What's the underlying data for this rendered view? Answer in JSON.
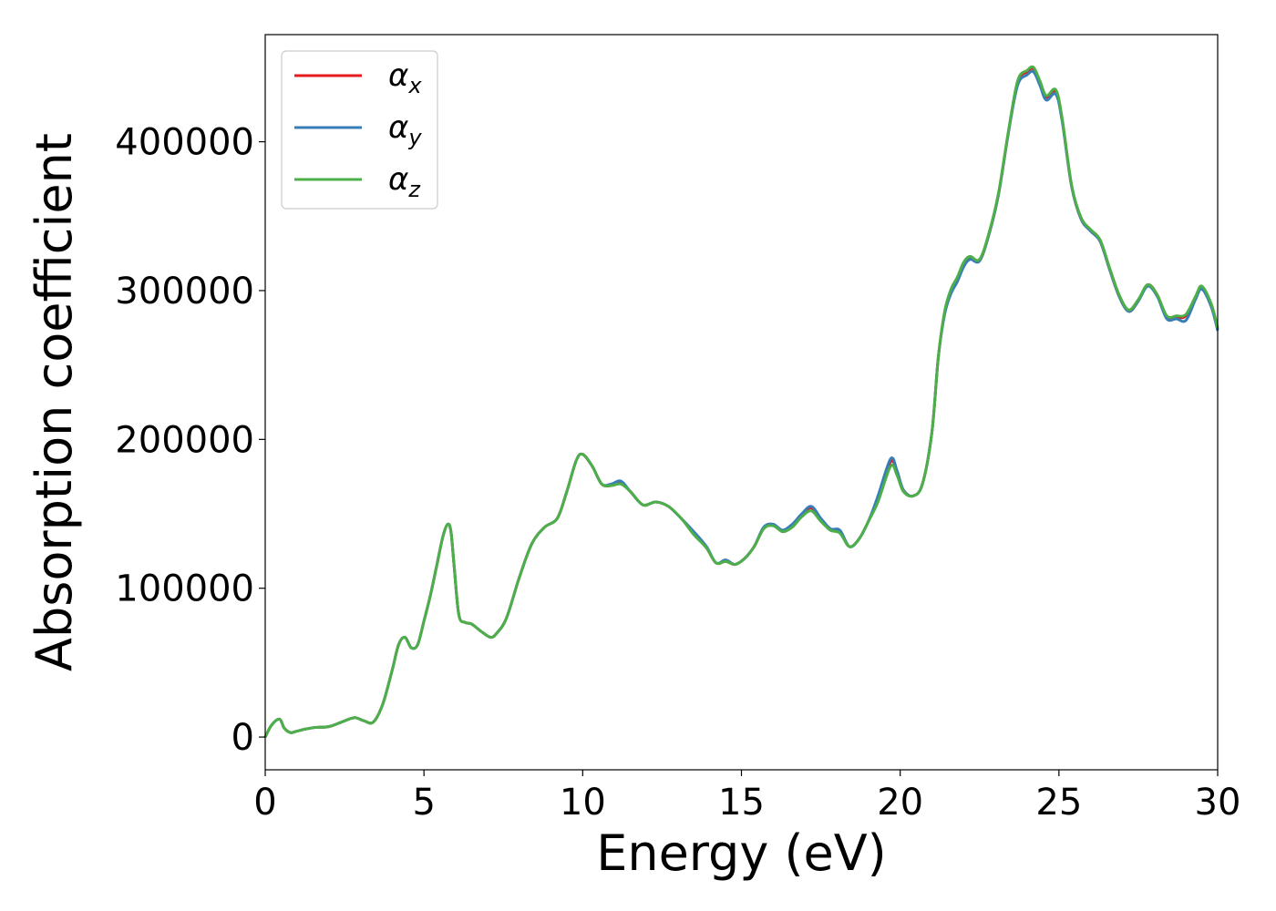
{
  "chart_data": {
    "type": "line",
    "xlabel": "Energy (eV)",
    "ylabel": "Absorption coefficient",
    "xlim": [
      0,
      30
    ],
    "ylim": [
      -22000,
      472000
    ],
    "xticks": [
      0,
      5,
      10,
      15,
      20,
      25,
      30
    ],
    "xtick_labels": [
      "0",
      "5",
      "10",
      "15",
      "20",
      "25",
      "30"
    ],
    "yticks": [
      0,
      100000,
      200000,
      300000,
      400000
    ],
    "ytick_labels": [
      "0",
      "100000",
      "200000",
      "300000",
      "400000"
    ],
    "grid": false,
    "legend_position": "top-left",
    "legend": [
      {
        "symbol": "α",
        "subscript": "x",
        "color": "#e41a1c"
      },
      {
        "symbol": "α",
        "subscript": "y",
        "color": "#377eb8"
      },
      {
        "symbol": "α",
        "subscript": "z",
        "color": "#4daf4a"
      }
    ],
    "series": [
      {
        "name": "αx",
        "color": "#e41a1c",
        "x": [
          0,
          0.2,
          0.45,
          0.6,
          0.8,
          1.0,
          1.3,
          1.6,
          2.0,
          2.4,
          2.8,
          3.1,
          3.4,
          3.7,
          4.0,
          4.2,
          4.4,
          4.6,
          4.8,
          5.0,
          5.2,
          5.4,
          5.6,
          5.75,
          5.85,
          5.95,
          6.1,
          6.3,
          6.5,
          6.8,
          7.1,
          7.3,
          7.6,
          8.0,
          8.4,
          8.8,
          9.2,
          9.5,
          9.8,
          10.0,
          10.3,
          10.6,
          10.9,
          11.2,
          11.5,
          11.9,
          12.3,
          12.7,
          13.1,
          13.5,
          13.9,
          14.2,
          14.5,
          14.8,
          15.1,
          15.4,
          15.7,
          16.0,
          16.3,
          16.6,
          16.9,
          17.2,
          17.5,
          17.8,
          18.1,
          18.4,
          18.7,
          19.0,
          19.3,
          19.7,
          19.9,
          20.1,
          20.4,
          20.7,
          21.0,
          21.2,
          21.4,
          21.6,
          21.8,
          22.0,
          22.2,
          22.5,
          22.8,
          23.1,
          23.4,
          23.7,
          24.0,
          24.2,
          24.4,
          24.6,
          24.9,
          25.1,
          25.4,
          25.7,
          26.0,
          26.3,
          26.6,
          26.9,
          27.2,
          27.5,
          27.8,
          28.1,
          28.4,
          28.7,
          29.0,
          29.3,
          29.5,
          29.8,
          30.0
        ],
        "y": [
          0,
          8000,
          12000,
          6000,
          3000,
          4000,
          5500,
          6500,
          7000,
          10000,
          13000,
          11000,
          10000,
          22000,
          45000,
          62000,
          67000,
          60000,
          62000,
          78000,
          95000,
          115000,
          135000,
          143000,
          138000,
          115000,
          82000,
          77000,
          76000,
          71000,
          67000,
          70000,
          80000,
          107000,
          130000,
          141000,
          147000,
          165000,
          186000,
          190000,
          182000,
          170000,
          169000,
          171000,
          165000,
          156000,
          158000,
          155000,
          147000,
          137000,
          127000,
          117000,
          118000,
          116000,
          120000,
          128000,
          140000,
          143000,
          138000,
          142000,
          149000,
          154000,
          146000,
          139000,
          138000,
          128000,
          133000,
          145000,
          160000,
          185000,
          178000,
          166000,
          162000,
          170000,
          205000,
          255000,
          285000,
          300000,
          308000,
          318000,
          322000,
          320000,
          338000,
          365000,
          405000,
          440000,
          447000,
          449000,
          440000,
          430000,
          434000,
          415000,
          370000,
          348000,
          340000,
          333000,
          314000,
          296000,
          286000,
          293000,
          304000,
          297000,
          282000,
          282000,
          283000,
          295000,
          302000,
          290000,
          274000
        ]
      },
      {
        "name": "αy",
        "color": "#377eb8",
        "x": [
          0,
          0.2,
          0.45,
          0.6,
          0.8,
          1.0,
          1.3,
          1.6,
          2.0,
          2.4,
          2.8,
          3.1,
          3.4,
          3.7,
          4.0,
          4.2,
          4.4,
          4.6,
          4.8,
          5.0,
          5.2,
          5.4,
          5.6,
          5.75,
          5.85,
          5.95,
          6.1,
          6.3,
          6.5,
          6.8,
          7.1,
          7.3,
          7.6,
          8.0,
          8.4,
          8.8,
          9.2,
          9.5,
          9.8,
          10.0,
          10.3,
          10.6,
          10.9,
          11.2,
          11.5,
          11.9,
          12.3,
          12.7,
          13.1,
          13.5,
          13.9,
          14.2,
          14.5,
          14.8,
          15.1,
          15.4,
          15.7,
          16.0,
          16.3,
          16.6,
          16.9,
          17.2,
          17.5,
          17.8,
          18.1,
          18.4,
          18.7,
          19.0,
          19.3,
          19.7,
          19.9,
          20.1,
          20.4,
          20.7,
          21.0,
          21.2,
          21.4,
          21.6,
          21.8,
          22.0,
          22.2,
          22.5,
          22.8,
          23.1,
          23.4,
          23.7,
          24.0,
          24.2,
          24.4,
          24.6,
          24.9,
          25.1,
          25.4,
          25.7,
          26.0,
          26.3,
          26.6,
          26.9,
          27.2,
          27.5,
          27.8,
          28.1,
          28.4,
          28.7,
          29.0,
          29.3,
          29.5,
          29.8,
          30.0
        ],
        "y": [
          0,
          8000,
          12000,
          6000,
          3000,
          4000,
          5500,
          6500,
          7000,
          10000,
          13000,
          11000,
          10000,
          22000,
          45000,
          62000,
          67000,
          60000,
          62000,
          78000,
          95000,
          115000,
          135000,
          143000,
          138000,
          115000,
          82000,
          77000,
          76000,
          71000,
          67000,
          70000,
          80000,
          107000,
          130000,
          141000,
          147000,
          165000,
          186000,
          190000,
          182000,
          170000,
          170000,
          172000,
          165000,
          156000,
          158000,
          155000,
          147000,
          138000,
          128000,
          117000,
          119000,
          116000,
          120000,
          128000,
          141000,
          143000,
          139000,
          143000,
          150000,
          155000,
          147000,
          140000,
          139000,
          128000,
          133000,
          145000,
          162000,
          187000,
          179000,
          166000,
          162000,
          170000,
          205000,
          255000,
          284000,
          298000,
          306000,
          316000,
          321000,
          320000,
          338000,
          365000,
          405000,
          438000,
          445000,
          447000,
          438000,
          428000,
          432000,
          414000,
          370000,
          348000,
          340000,
          333000,
          314000,
          296000,
          286000,
          293000,
          303000,
          296000,
          281000,
          281000,
          280000,
          294000,
          301000,
          289000,
          273000
        ]
      },
      {
        "name": "αz",
        "color": "#4daf4a",
        "x": [
          0,
          0.2,
          0.45,
          0.6,
          0.8,
          1.0,
          1.3,
          1.6,
          2.0,
          2.4,
          2.8,
          3.1,
          3.4,
          3.7,
          4.0,
          4.2,
          4.4,
          4.6,
          4.8,
          5.0,
          5.2,
          5.4,
          5.6,
          5.75,
          5.85,
          5.95,
          6.1,
          6.3,
          6.5,
          6.8,
          7.1,
          7.3,
          7.6,
          8.0,
          8.4,
          8.8,
          9.2,
          9.5,
          9.8,
          10.0,
          10.3,
          10.6,
          10.9,
          11.2,
          11.5,
          11.9,
          12.3,
          12.7,
          13.1,
          13.5,
          13.9,
          14.2,
          14.5,
          14.8,
          15.1,
          15.4,
          15.7,
          16.0,
          16.3,
          16.6,
          16.9,
          17.2,
          17.5,
          17.8,
          18.1,
          18.4,
          18.7,
          19.0,
          19.3,
          19.7,
          19.9,
          20.1,
          20.4,
          20.7,
          21.0,
          21.2,
          21.4,
          21.6,
          21.8,
          22.0,
          22.2,
          22.5,
          22.8,
          23.1,
          23.4,
          23.7,
          24.0,
          24.2,
          24.4,
          24.6,
          24.9,
          25.1,
          25.4,
          25.7,
          26.0,
          26.3,
          26.6,
          26.9,
          27.2,
          27.5,
          27.8,
          28.1,
          28.4,
          28.7,
          29.0,
          29.3,
          29.5,
          29.8,
          30.0
        ],
        "y": [
          0,
          8000,
          12000,
          6000,
          3000,
          4000,
          5500,
          6500,
          7000,
          10000,
          13000,
          11000,
          10000,
          22000,
          45000,
          62000,
          67000,
          60000,
          62000,
          78000,
          95000,
          115000,
          135000,
          143000,
          138000,
          115000,
          82000,
          77000,
          76000,
          71000,
          67000,
          70000,
          80000,
          107000,
          130000,
          141000,
          147000,
          165000,
          186000,
          190000,
          182000,
          170000,
          169000,
          170000,
          165000,
          156000,
          158000,
          155000,
          147000,
          136000,
          127000,
          117000,
          118000,
          116000,
          120000,
          128000,
          140000,
          142000,
          138000,
          141000,
          148000,
          152000,
          145000,
          139000,
          137000,
          128000,
          133000,
          145000,
          158000,
          182000,
          176000,
          165000,
          162000,
          170000,
          205000,
          255000,
          286000,
          301000,
          309000,
          319000,
          323000,
          321000,
          339000,
          366000,
          406000,
          441000,
          448000,
          450000,
          441000,
          431000,
          435000,
          416000,
          371000,
          349000,
          341000,
          334000,
          315000,
          297000,
          287000,
          294000,
          304000,
          297000,
          283000,
          283000,
          284000,
          296000,
          303000,
          291000,
          275000
        ]
      }
    ]
  }
}
